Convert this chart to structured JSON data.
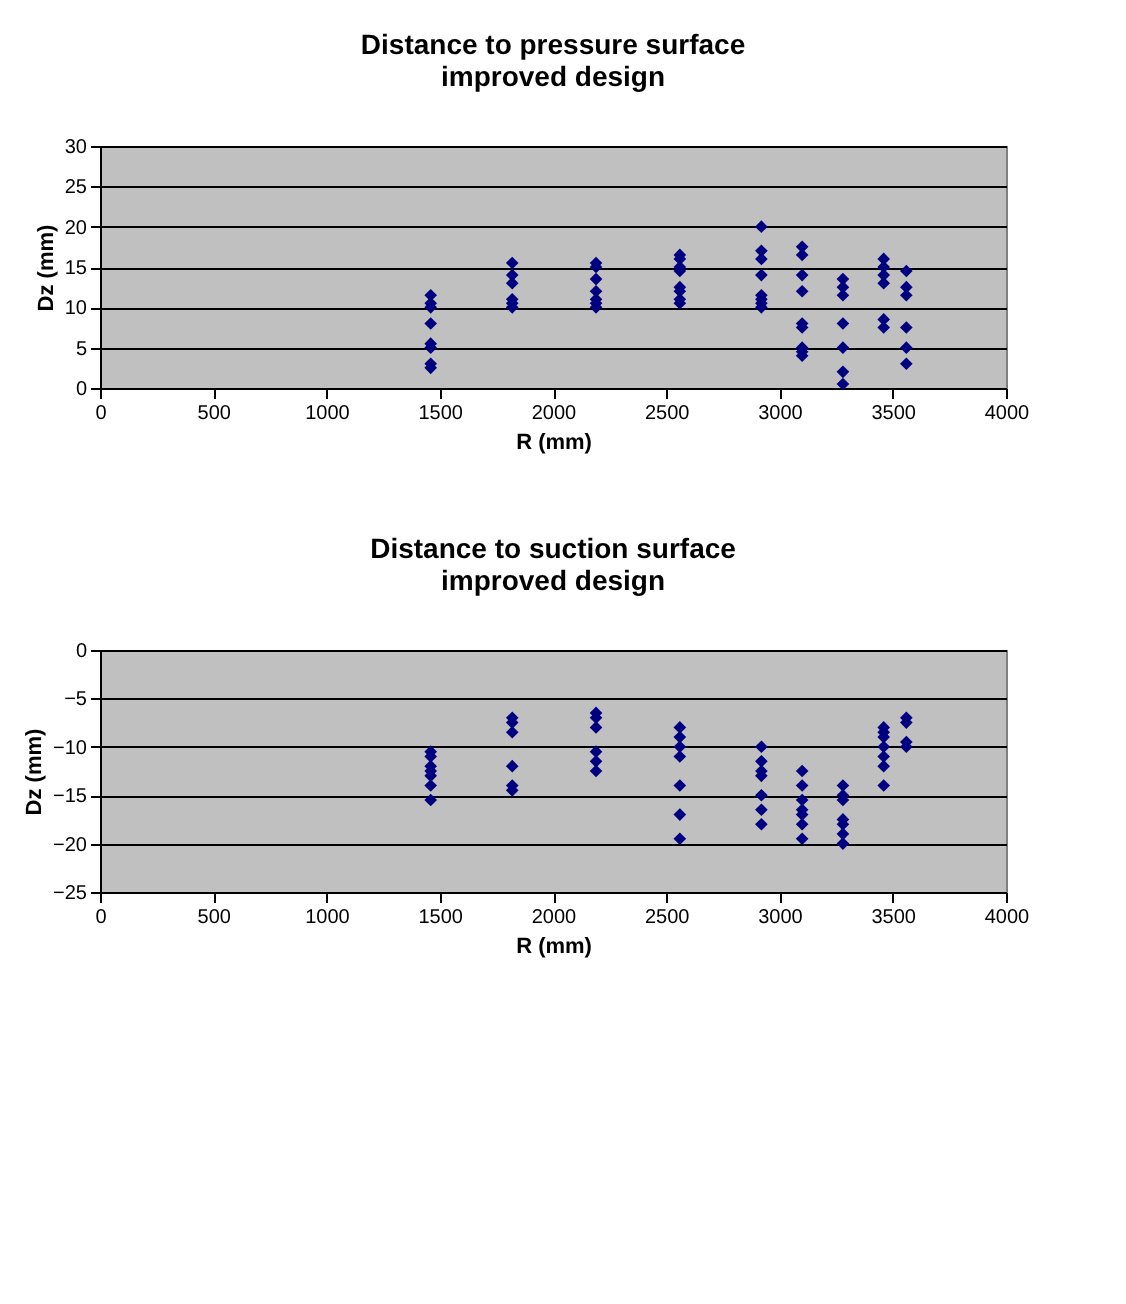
{
  "chart_data": [
    {
      "type": "scatter",
      "title": "Distance to pressure surface\nimproved design",
      "xlabel": "R (mm)",
      "ylabel": "Dz (mm)",
      "marker": "diamond",
      "grid": "y",
      "xlim": [
        0,
        4000
      ],
      "xticks": [
        0,
        500,
        1000,
        1500,
        2000,
        2500,
        3000,
        3500,
        4000
      ],
      "ylim": [
        0,
        30
      ],
      "yticks": [
        0,
        5,
        10,
        15,
        20,
        25,
        30
      ],
      "series": [
        {
          "color": "#000080",
          "x": [
            1460,
            1460,
            1460,
            1460,
            1460,
            1460,
            1460,
            1460,
            1820,
            1820,
            1820,
            1820,
            1820,
            1820,
            2190,
            2190,
            2190,
            2190,
            2190,
            2190,
            2190,
            2560,
            2560,
            2560,
            2560,
            2560,
            2560,
            2560,
            2560,
            2920,
            2920,
            2920,
            2920,
            2920,
            2920,
            2920,
            2920,
            3100,
            3100,
            3100,
            3100,
            3100,
            3100,
            3100,
            3100,
            3100,
            3280,
            3280,
            3280,
            3280,
            3280,
            3280,
            3280,
            3460,
            3460,
            3460,
            3460,
            3460,
            3460,
            3560,
            3560,
            3560,
            3560,
            3560,
            3560
          ],
          "values": [
            11.5,
            10.5,
            10,
            8,
            5.5,
            5,
            3,
            2.5,
            15.5,
            14,
            13,
            11,
            10.5,
            10,
            15.5,
            15,
            13.5,
            12,
            11,
            10.5,
            10,
            16.5,
            16,
            15,
            14.5,
            12.5,
            12,
            11,
            10.5,
            20,
            17,
            16,
            14,
            11.5,
            11,
            10.5,
            10,
            17.5,
            16.5,
            14,
            12,
            8,
            7.5,
            5,
            4.5,
            4,
            13.5,
            12.5,
            11.5,
            8,
            5,
            2,
            0.5,
            16,
            15,
            14,
            13,
            8.5,
            7.5,
            14.5,
            12.5,
            11.5,
            7.5,
            5,
            3
          ]
        }
      ]
    },
    {
      "type": "scatter",
      "title": "Distance to suction surface\nimproved design",
      "xlabel": "R (mm)",
      "ylabel": "Dz (mm)",
      "marker": "diamond",
      "grid": "y",
      "xlim": [
        0,
        4000
      ],
      "xticks": [
        0,
        500,
        1000,
        1500,
        2000,
        2500,
        3000,
        3500,
        4000
      ],
      "ylim": [
        -25,
        0
      ],
      "yticks": [
        -25,
        -20,
        -15,
        -10,
        -5,
        0
      ],
      "series": [
        {
          "color": "#000080",
          "x": [
            1460,
            1460,
            1460,
            1460,
            1460,
            1460,
            1460,
            1820,
            1820,
            1820,
            1820,
            1820,
            1820,
            2190,
            2190,
            2190,
            2190,
            2190,
            2190,
            2560,
            2560,
            2560,
            2560,
            2560,
            2560,
            2560,
            2920,
            2920,
            2920,
            2920,
            2920,
            2920,
            2920,
            3100,
            3100,
            3100,
            3100,
            3100,
            3100,
            3100,
            3280,
            3280,
            3280,
            3280,
            3280,
            3280,
            3280,
            3460,
            3460,
            3460,
            3460,
            3460,
            3460,
            3460,
            3560,
            3560,
            3560,
            3560
          ],
          "values": [
            -10.5,
            -11,
            -12,
            -12.5,
            -13,
            -14,
            -15.5,
            -7,
            -7.5,
            -8.5,
            -12,
            -14,
            -14.5,
            -6.5,
            -7,
            -8,
            -10.5,
            -11.5,
            -12.5,
            -8,
            -9,
            -10,
            -11,
            -14,
            -17,
            -19.5,
            -10,
            -11.5,
            -12.5,
            -13,
            -15,
            -16.5,
            -18,
            -12.5,
            -14,
            -15.5,
            -16.5,
            -17,
            -18,
            -19.5,
            -14,
            -15,
            -15.5,
            -17.5,
            -18,
            -19,
            -20,
            -8,
            -8.5,
            -9,
            -10,
            -11,
            -12,
            -14,
            -7,
            -7.5,
            -9.5,
            -10
          ]
        }
      ]
    }
  ]
}
